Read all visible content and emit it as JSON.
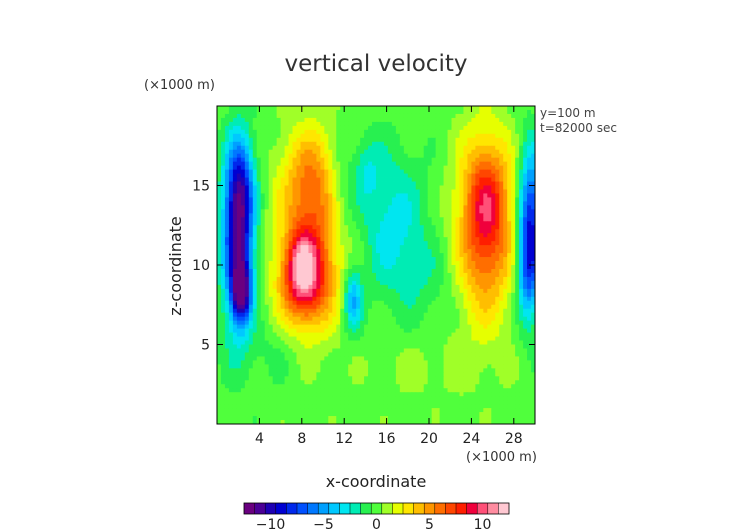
{
  "chart_data": {
    "type": "heatmap",
    "title": "vertical velocity",
    "xlabel": "x-coordinate",
    "ylabel": "z-coordinate",
    "x_unit_label": "(×1000 m)",
    "y_unit_label": "(×1000 m)",
    "annotations": [
      "y=100 m",
      "t=82000 sec"
    ],
    "xlim": [
      0,
      30
    ],
    "ylim": [
      0,
      20
    ],
    "x_ticks": [
      4,
      8,
      12,
      16,
      20,
      24,
      28
    ],
    "y_ticks": [
      5,
      10,
      15
    ],
    "grid": false,
    "colorbar": {
      "min": -12.5,
      "max": 12.5,
      "ticks": [
        -10,
        -5,
        0,
        5,
        10
      ],
      "colors": [
        "#6a0080",
        "#4b0096",
        "#1e00b4",
        "#0000d2",
        "#0028ec",
        "#0050ff",
        "#0078ff",
        "#00a0ff",
        "#00c8ff",
        "#00e6f0",
        "#00ecb4",
        "#28f050",
        "#50ff3c",
        "#a0ff28",
        "#e6ff00",
        "#ffe600",
        "#ffbe00",
        "#ff9600",
        "#ff6e00",
        "#ff4600",
        "#ff1e00",
        "#f0003c",
        "#ff5078",
        "#ff8ca0",
        "#ffc8d2"
      ]
    },
    "features": [
      {
        "x": 2.0,
        "z": 11.5,
        "value": -10,
        "sx": 1.0,
        "sz": 3.6
      },
      {
        "x": 2.3,
        "z": 8.3,
        "value": -9,
        "sx": 0.6,
        "sz": 1.2
      },
      {
        "x": 2.2,
        "z": 15.0,
        "value": -5,
        "sx": 0.9,
        "sz": 2.2
      },
      {
        "x": 9.0,
        "z": 12.0,
        "value": 6,
        "sx": 2.2,
        "sz": 4.0
      },
      {
        "x": 8.2,
        "z": 8.8,
        "value": 6,
        "sx": 1.6,
        "sz": 1.8
      },
      {
        "x": 8.0,
        "z": 10.2,
        "value": 4,
        "sx": 0.9,
        "sz": 1.4
      },
      {
        "x": 8.8,
        "z": 15.8,
        "value": 2,
        "sx": 1.8,
        "sz": 1.8
      },
      {
        "x": 12.8,
        "z": 7.8,
        "value": -5,
        "sx": 0.6,
        "sz": 1.4
      },
      {
        "x": 11.5,
        "z": 14.5,
        "value": -2,
        "sx": 1.0,
        "sz": 2.5
      },
      {
        "x": 16.5,
        "z": 12.5,
        "value": -3,
        "sx": 2.2,
        "sz": 3.2
      },
      {
        "x": 14.0,
        "z": 16.0,
        "value": -2,
        "sx": 1.0,
        "sz": 1.5
      },
      {
        "x": 25.3,
        "z": 12.3,
        "value": 7,
        "sx": 1.9,
        "sz": 4.0
      },
      {
        "x": 25.5,
        "z": 14.2,
        "value": 3,
        "sx": 1.3,
        "sz": 2.3
      },
      {
        "x": 29.6,
        "z": 12.5,
        "value": -9,
        "sx": 0.8,
        "sz": 3.2
      },
      {
        "x": 29.2,
        "z": 9.0,
        "value": -3,
        "sx": 0.7,
        "sz": 2.0
      },
      {
        "x": 20.0,
        "z": 9.0,
        "value": -1,
        "sx": 2.0,
        "sz": 2.0
      },
      {
        "x": 5.0,
        "z": 4.5,
        "value": -0.8,
        "sx": 3.0,
        "sz": 1.5
      },
      {
        "x": 20.0,
        "z": 3.5,
        "value": 0.8,
        "sx": 4.0,
        "sz": 1.5
      }
    ]
  }
}
